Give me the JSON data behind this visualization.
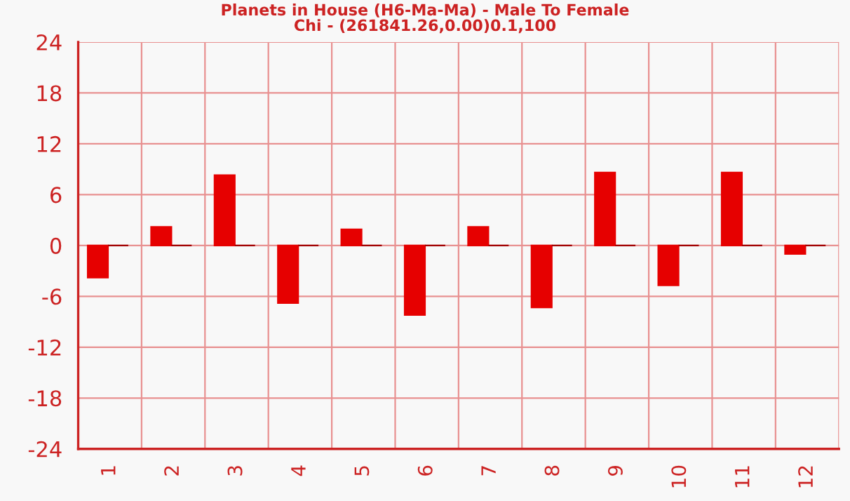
{
  "chart_data": {
    "type": "bar",
    "title": "Planets in House (H6-Ma-Ma) - Male To Female",
    "subtitle": "Chi - (261841.26,0.00)0.1,100",
    "categories": [
      "1",
      "2",
      "3",
      "4",
      "5",
      "6",
      "7",
      "8",
      "9",
      "10",
      "11",
      "12"
    ],
    "series": [
      {
        "color": "#e60000",
        "values": [
          -3.8,
          2.2,
          8.3,
          -6.8,
          1.9,
          -8.2,
          2.2,
          -7.3,
          8.6,
          -4.7,
          8.6,
          -1.0
        ]
      },
      {
        "color": "#a00000",
        "values": [
          0,
          0,
          0,
          0,
          0,
          0,
          0,
          0,
          0,
          0,
          0,
          0
        ]
      }
    ],
    "ylim": [
      -24,
      24
    ],
    "yticks": [
      -24,
      -18,
      -12,
      -6,
      0,
      6,
      12,
      18,
      24
    ],
    "grid": true,
    "legend": false
  }
}
